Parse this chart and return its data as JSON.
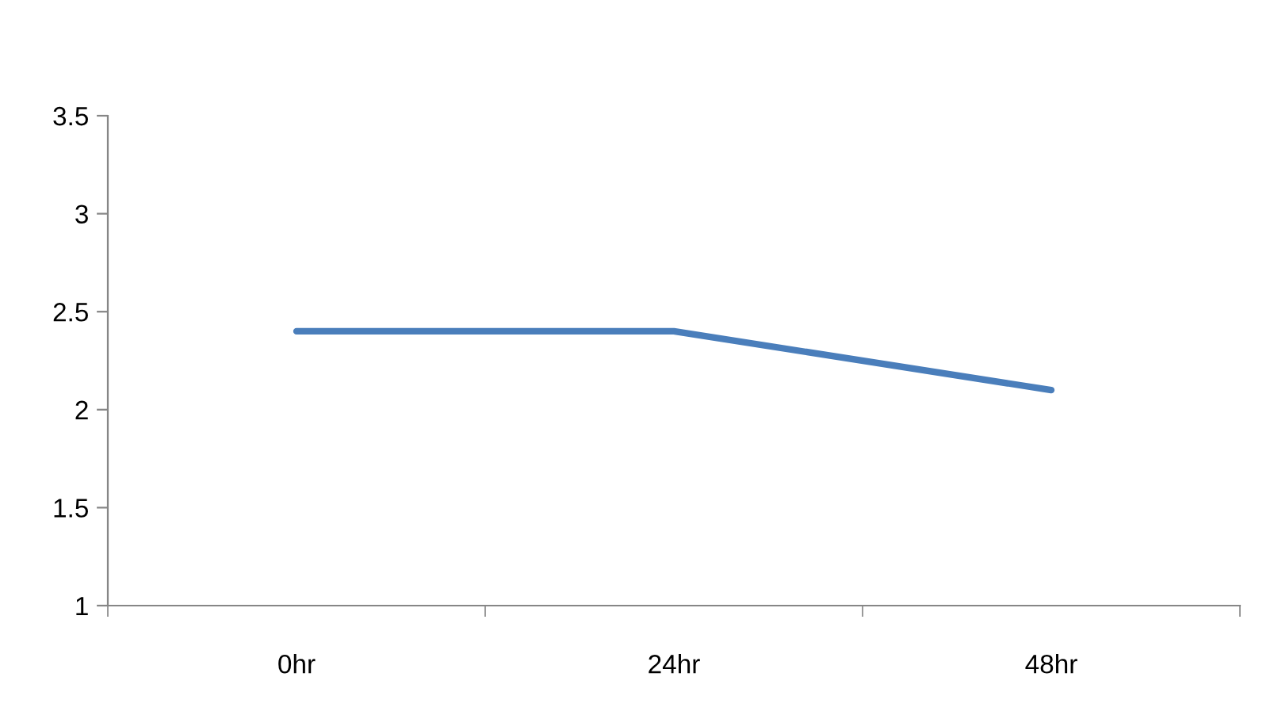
{
  "chart_data": {
    "type": "line",
    "categories": [
      "0hr",
      "24hr",
      "48hr"
    ],
    "series": [
      {
        "color": "#4a7ebb",
        "values": [
          2.4,
          2.4,
          2.1
        ]
      }
    ],
    "ylim": [
      1,
      3.5
    ],
    "yticks": [
      1,
      1.5,
      2,
      2.5,
      3,
      3.5
    ],
    "marker": "none",
    "line_style": "solid"
  }
}
